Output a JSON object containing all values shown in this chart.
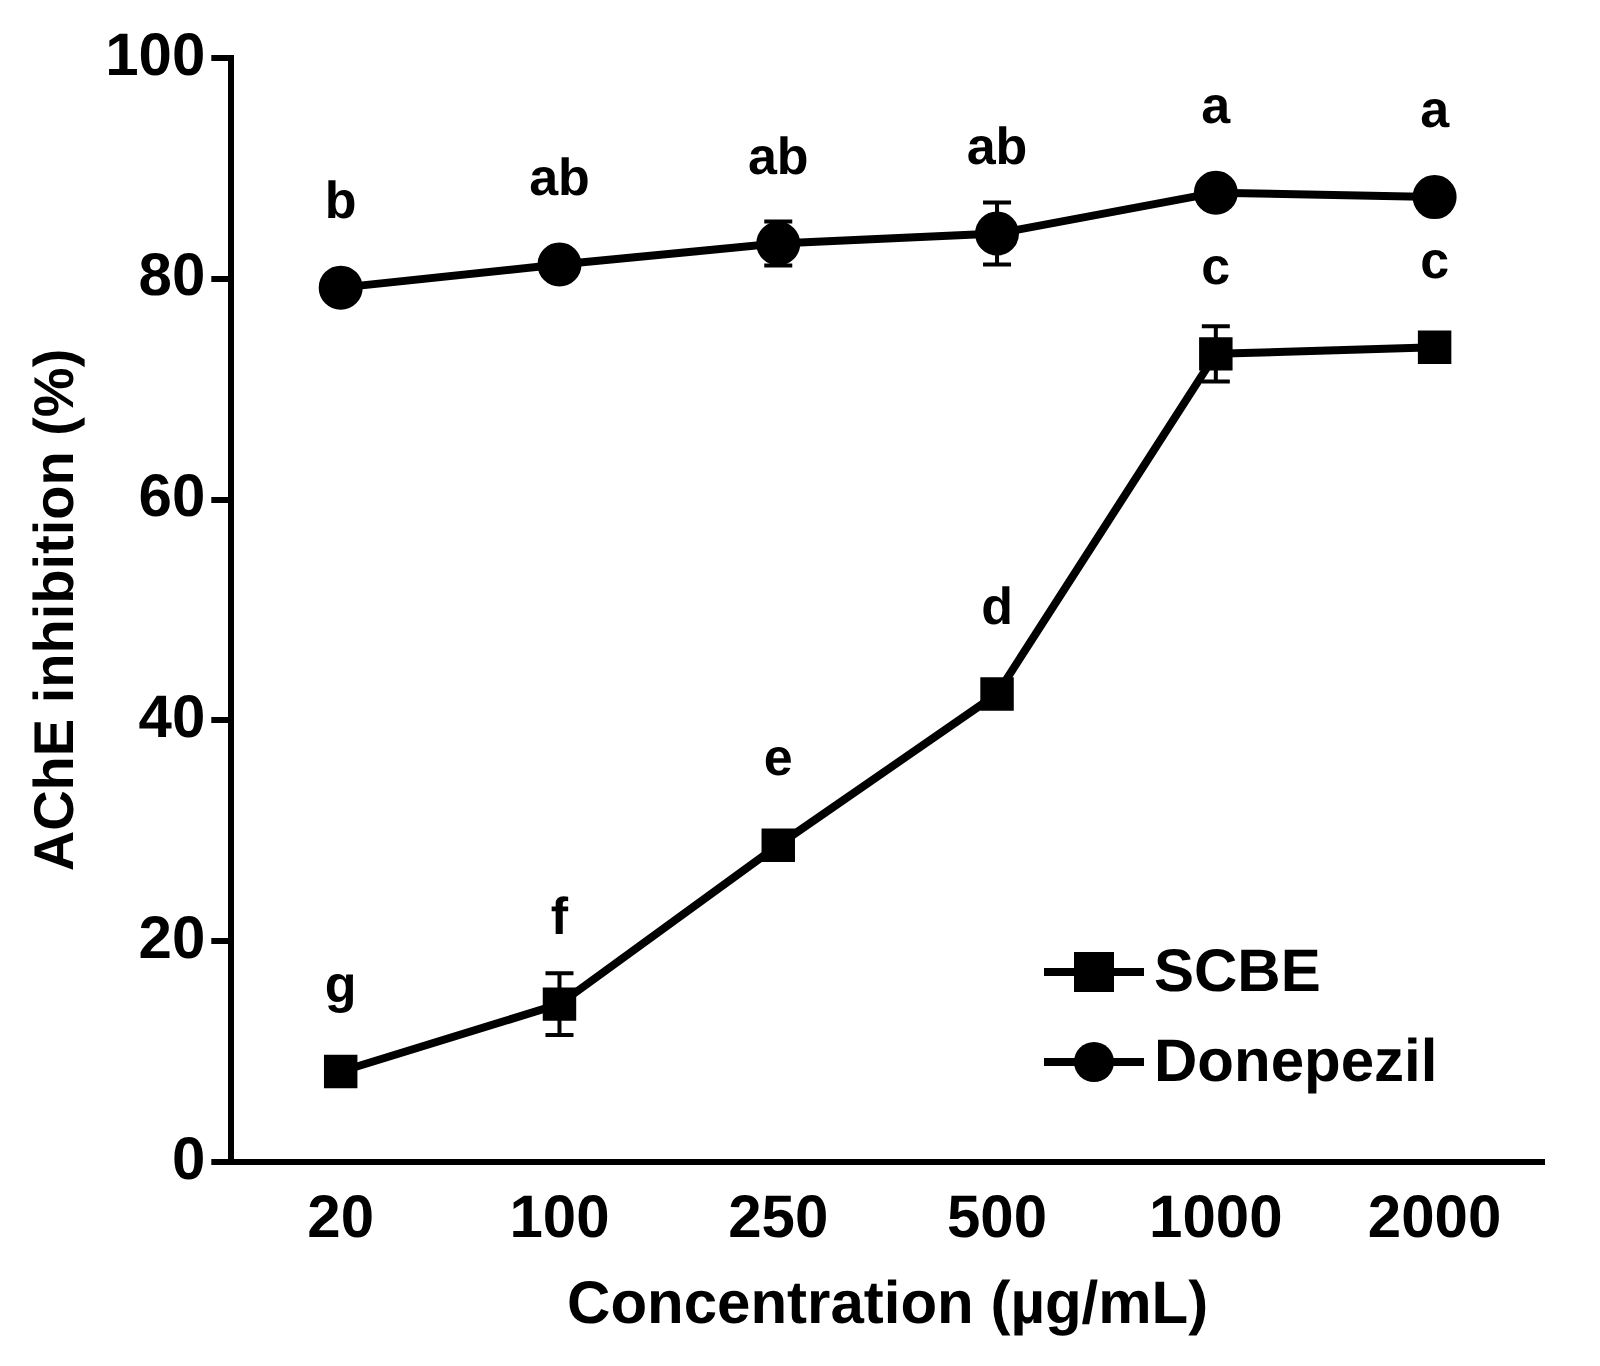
{
  "chart_data": {
    "type": "line",
    "xlabel": "Concentration (µg/mL)",
    "ylabel": "AChE inhibition (%)",
    "categories": [
      "20",
      "100",
      "250",
      "500",
      "1000",
      "2000"
    ],
    "series": [
      {
        "name": "SCBE",
        "color": "#000000",
        "marker": "square",
        "values": [
          8.2,
          14.3,
          28.7,
          42.4,
          73.2,
          73.8
        ],
        "errors": [
          null,
          2.8,
          null,
          null,
          2.5,
          null
        ]
      },
      {
        "name": "Donepezil",
        "color": "#000000",
        "marker": "circle",
        "values": [
          79.2,
          81.3,
          83.2,
          84.1,
          87.8,
          87.4
        ],
        "errors": [
          null,
          null,
          2,
          2.8,
          null,
          null
        ]
      }
    ],
    "ylim": [
      0,
      100
    ],
    "yticks": [
      0,
      20,
      40,
      60,
      80,
      100
    ],
    "grid": false,
    "legend": "bottom right",
    "line_style": "solid",
    "annotations": [
      {
        "text": "g",
        "x": "20",
        "y": 8.2
      },
      {
        "text": "f",
        "x": "100",
        "y": 14.3
      },
      {
        "text": "e",
        "x": "250",
        "y": 28.7
      },
      {
        "text": "d",
        "x": "500",
        "y": 42.4
      },
      {
        "text": "c",
        "x": "1000",
        "y": 73.2
      },
      {
        "text": "c",
        "x": "2000",
        "y": 73.8
      },
      {
        "text": "b",
        "x": "20",
        "y": 79.2
      },
      {
        "text": "ab",
        "x": "100",
        "y": 81.3
      },
      {
        "text": "ab",
        "x": "250",
        "y": 83.2
      },
      {
        "text": "ab",
        "x": "500",
        "y": 84.1
      },
      {
        "text": "a",
        "x": "1000",
        "y": 87.8
      },
      {
        "text": "a",
        "x": "2000",
        "y": 87.4
      }
    ]
  }
}
